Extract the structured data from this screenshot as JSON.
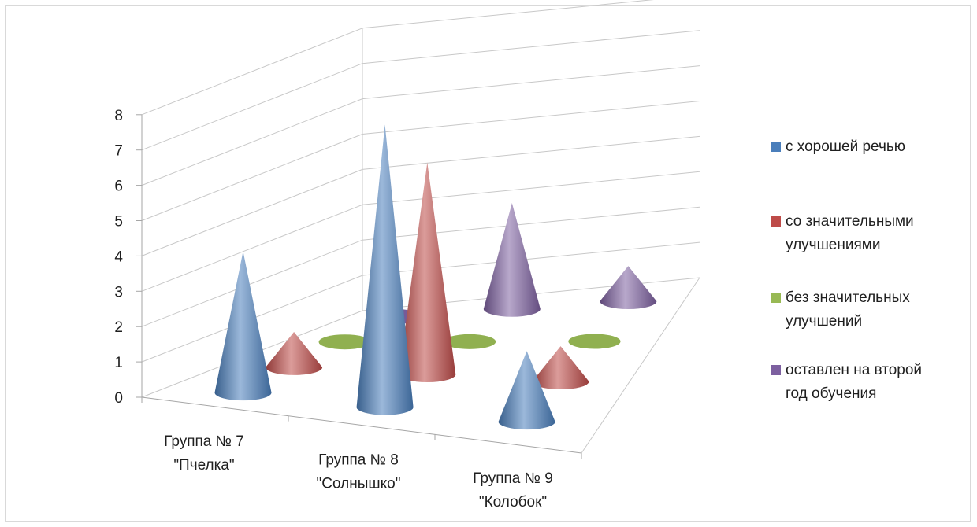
{
  "chart_data": {
    "type": "3d-cone",
    "title": "",
    "xlabel": "",
    "ylabel": "",
    "ylim": [
      0,
      8
    ],
    "y_ticks": [
      "0",
      "1",
      "2",
      "3",
      "4",
      "5",
      "6",
      "7",
      "8"
    ],
    "categories": [
      [
        "Группа № 7",
        "\"Пчелка\""
      ],
      [
        "Группа № 8",
        "\"Солнышко\""
      ],
      [
        "Группа № 9",
        "\"Колобок\""
      ]
    ],
    "series": [
      {
        "name": "с хорошей речью",
        "legend_lines": [
          "с хорошей речью"
        ],
        "color": "#4a7ebb",
        "values": [
          4,
          8,
          2
        ]
      },
      {
        "name": "со значительными улучшениями",
        "legend_lines": [
          "со значительными",
          "улучшениями"
        ],
        "color": "#be4b48",
        "values": [
          1,
          6,
          1
        ]
      },
      {
        "name": "без значительных улучшений",
        "legend_lines": [
          "без значительных",
          "улучшений"
        ],
        "color": "#98b954",
        "values": [
          0,
          0,
          0
        ]
      },
      {
        "name": "оставлен на второй год обучения",
        "legend_lines": [
          "оставлен на второй",
          "год обучения"
        ],
        "color": "#7d60a0",
        "values": [
          0,
          3,
          1
        ]
      }
    ],
    "legend_position": "right",
    "grid": true
  }
}
